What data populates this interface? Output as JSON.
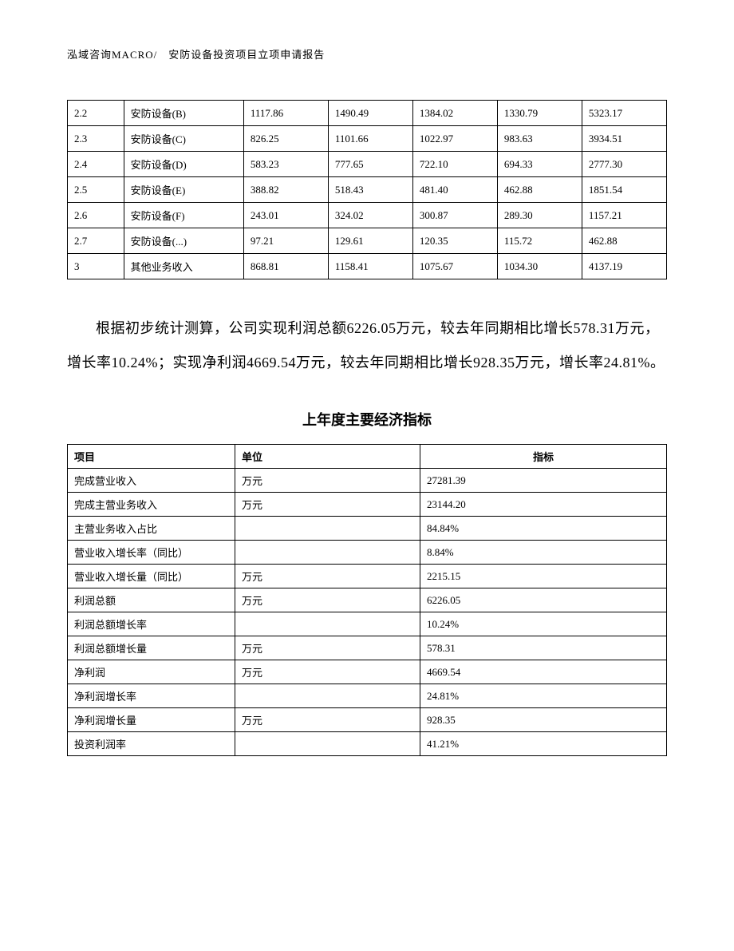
{
  "header": "泓域咨询MACRO/　安防设备投资项目立项申请报告",
  "table1": {
    "rows": [
      [
        "2.2",
        "安防设备(B)",
        "1117.86",
        "1490.49",
        "1384.02",
        "1330.79",
        "5323.17"
      ],
      [
        "2.3",
        "安防设备(C)",
        "826.25",
        "1101.66",
        "1022.97",
        "983.63",
        "3934.51"
      ],
      [
        "2.4",
        "安防设备(D)",
        "583.23",
        "777.65",
        "722.10",
        "694.33",
        "2777.30"
      ],
      [
        "2.5",
        "安防设备(E)",
        "388.82",
        "518.43",
        "481.40",
        "462.88",
        "1851.54"
      ],
      [
        "2.6",
        "安防设备(F)",
        "243.01",
        "324.02",
        "300.87",
        "289.30",
        "1157.21"
      ],
      [
        "2.7",
        "安防设备(...)",
        "97.21",
        "129.61",
        "120.35",
        "115.72",
        "462.88"
      ],
      [
        "3",
        "其他业务收入",
        "868.81",
        "1158.41",
        "1075.67",
        "1034.30",
        "4137.19"
      ]
    ]
  },
  "paragraph": "根据初步统计测算，公司实现利润总额6226.05万元，较去年同期相比增长578.31万元，增长率10.24%；实现净利润4669.54万元，较去年同期相比增长928.35万元，增长率24.81%。",
  "table2": {
    "title": "上年度主要经济指标",
    "headers": [
      "项目",
      "单位",
      "指标"
    ],
    "rows": [
      [
        "完成营业收入",
        "万元",
        "27281.39"
      ],
      [
        "完成主营业务收入",
        "万元",
        "23144.20"
      ],
      [
        "主营业务收入占比",
        "",
        "84.84%"
      ],
      [
        "营业收入增长率（同比）",
        "",
        "8.84%"
      ],
      [
        "营业收入增长量（同比）",
        "万元",
        "2215.15"
      ],
      [
        "利润总额",
        "万元",
        "6226.05"
      ],
      [
        "利润总额增长率",
        "",
        "10.24%"
      ],
      [
        "利润总额增长量",
        "万元",
        "578.31"
      ],
      [
        "净利润",
        "万元",
        "4669.54"
      ],
      [
        "净利润增长率",
        "",
        "24.81%"
      ],
      [
        "净利润增长量",
        "万元",
        "928.35"
      ],
      [
        "投资利润率",
        "",
        "41.21%"
      ]
    ]
  }
}
